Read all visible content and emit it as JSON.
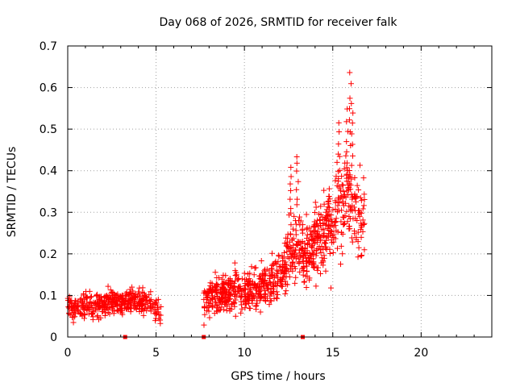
{
  "chart_data": {
    "type": "scatter",
    "title": "Day 068 of 2026, SRMTID for receiver falk",
    "xlabel": "GPS time / hours",
    "ylabel": "SRMTID / TECUs",
    "xlim": [
      0,
      24
    ],
    "ylim": [
      0,
      0.7
    ],
    "x_ticks": [
      0,
      5,
      10,
      15,
      20
    ],
    "y_ticks": [
      0,
      0.1,
      0.2,
      0.3,
      0.4,
      0.5,
      0.6,
      0.7
    ],
    "grid": true,
    "marker": "plus",
    "color": "#ff0000",
    "gap_marks_x": [
      3.25,
      7.7,
      13.3
    ],
    "segments": [
      {
        "x_start": 0.0,
        "x_end": 5.3,
        "envelope": [
          [
            0.0,
            0.07
          ],
          [
            0.5,
            0.07
          ],
          [
            1.0,
            0.08
          ],
          [
            1.5,
            0.07
          ],
          [
            2.0,
            0.08
          ],
          [
            2.5,
            0.09
          ],
          [
            3.0,
            0.08
          ],
          [
            3.5,
            0.09
          ],
          [
            4.0,
            0.09
          ],
          [
            4.5,
            0.08
          ],
          [
            5.0,
            0.07
          ],
          [
            5.3,
            0.06
          ]
        ],
        "spread": 0.03
      },
      {
        "x_start": 7.7,
        "x_end": 16.8,
        "envelope": [
          [
            7.7,
            0.07
          ],
          [
            8.0,
            0.1
          ],
          [
            8.5,
            0.1
          ],
          [
            9.0,
            0.11
          ],
          [
            9.5,
            0.12
          ],
          [
            10.0,
            0.1
          ],
          [
            10.5,
            0.11
          ],
          [
            11.0,
            0.12
          ],
          [
            11.5,
            0.13
          ],
          [
            12.0,
            0.15
          ],
          [
            12.5,
            0.2
          ],
          [
            13.0,
            0.21
          ],
          [
            13.5,
            0.19
          ],
          [
            14.0,
            0.22
          ],
          [
            14.5,
            0.25
          ],
          [
            15.0,
            0.27
          ],
          [
            15.3,
            0.33
          ],
          [
            15.6,
            0.3
          ],
          [
            16.0,
            0.35
          ],
          [
            16.3,
            0.28
          ],
          [
            16.8,
            0.27
          ]
        ],
        "spread_rule": "0.02 + 0.3 * value"
      }
    ],
    "peaks": [
      [
        12.6,
        0.41
      ],
      [
        13.0,
        0.44
      ],
      [
        14.0,
        0.33
      ],
      [
        14.8,
        0.36
      ],
      [
        15.3,
        0.52
      ],
      [
        15.8,
        0.55
      ],
      [
        16.0,
        0.64
      ],
      [
        16.1,
        0.57
      ]
    ]
  }
}
